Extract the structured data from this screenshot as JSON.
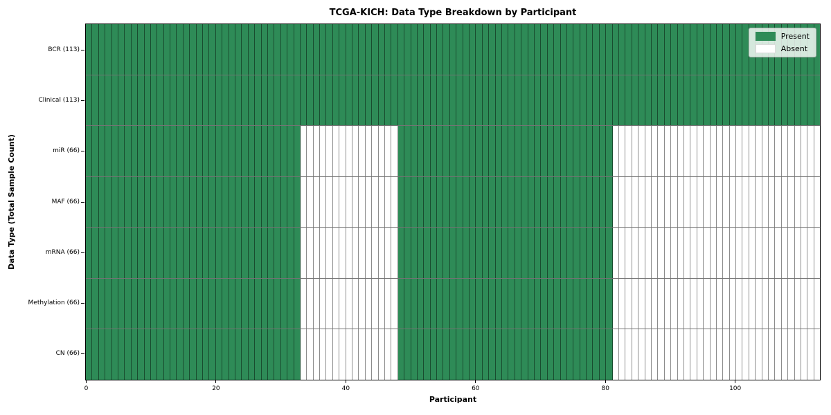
{
  "chart_data": {
    "type": "heatmap",
    "title": "TCGA-KICH: Data Type Breakdown by Participant",
    "xlabel": "Participant",
    "ylabel": "Data Type (Total Sample Count)",
    "x_ticks": [
      0,
      20,
      40,
      60,
      80,
      100
    ],
    "x_range": [
      0,
      113
    ],
    "n_participants": 113,
    "categories": [
      "BCR (113)",
      "Clinical (113)",
      "miR (66)",
      "MAF (66)",
      "mRNA (66)",
      "Methylation (66)",
      "CN (66)"
    ],
    "rows": [
      {
        "label": "BCR (113)",
        "present_count": 113,
        "present_ranges": [
          [
            0,
            112
          ]
        ]
      },
      {
        "label": "Clinical (113)",
        "present_count": 113,
        "present_ranges": [
          [
            0,
            112
          ]
        ]
      },
      {
        "label": "miR (66)",
        "present_count": 66,
        "present_ranges": [
          [
            0,
            32
          ],
          [
            48,
            80
          ]
        ]
      },
      {
        "label": "MAF (66)",
        "present_count": 66,
        "present_ranges": [
          [
            0,
            32
          ],
          [
            48,
            80
          ]
        ]
      },
      {
        "label": "mRNA (66)",
        "present_count": 66,
        "present_ranges": [
          [
            0,
            32
          ],
          [
            48,
            80
          ]
        ]
      },
      {
        "label": "Methylation (66)",
        "present_count": 66,
        "present_ranges": [
          [
            0,
            32
          ],
          [
            48,
            80
          ]
        ]
      },
      {
        "label": "CN (66)",
        "present_count": 66,
        "present_ranges": [
          [
            0,
            32
          ],
          [
            48,
            80
          ]
        ]
      }
    ],
    "legend": {
      "position": "upper right",
      "entries": [
        {
          "label": "Present",
          "color": "#2e8b57"
        },
        {
          "label": "Absent",
          "color": "#ffffff"
        }
      ]
    },
    "colors": {
      "present": "#2e8b57",
      "absent": "#ffffff",
      "cell_border": "rgba(0,0,0,0.45)",
      "spine": "#000000"
    },
    "grid": "cell-borders",
    "legend_visible": true
  }
}
